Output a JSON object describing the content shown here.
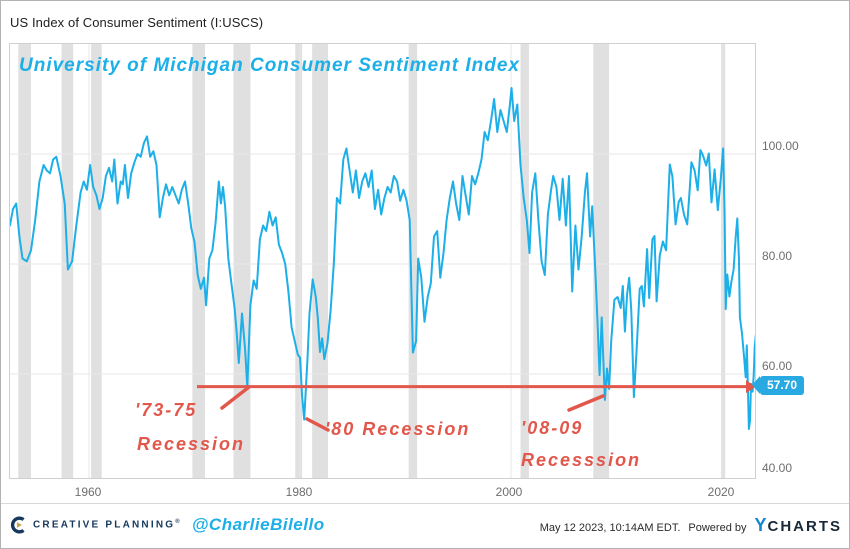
{
  "header": {
    "title": "US Index of Consumer Sentiment (I:USCS)"
  },
  "chart": {
    "title": "University of Michigan Consumer Sentiment Index",
    "line_color": "#1cafe8",
    "red_line_color": "#e2574c",
    "band_color": "#e0e0e0",
    "grid_color": "#e7e7e7",
    "last_value_label": "57.70"
  },
  "chart_data": {
    "type": "line",
    "title": "University of Michigan Consumer Sentiment Index",
    "series_name": "US Index of Consumer Sentiment (I:USCS)",
    "xlabel": "",
    "ylabel": "",
    "x_ticks": [
      "1960",
      "1980",
      "2000",
      "2020"
    ],
    "x_tick_values": [
      1960,
      1980,
      2000,
      2020
    ],
    "y_ticks": [
      "100.00",
      "80.00",
      "60.00",
      "40.00"
    ],
    "y_tick_values": [
      100,
      80,
      60,
      40
    ],
    "xlim": [
      1951.9,
      2023.9
    ],
    "ylim": [
      40,
      120
    ],
    "grid": true,
    "legend": "none",
    "latest_value": 57.7,
    "reference_line_value": 57.7,
    "recession_bands": [
      [
        1953.3,
        1954.5
      ],
      [
        1957.4,
        1958.5
      ],
      [
        1960.2,
        1961.2
      ],
      [
        1969.8,
        1971.0
      ],
      [
        1973.7,
        1975.3
      ],
      [
        1979.55,
        1980.2
      ],
      [
        1981.15,
        1982.65
      ],
      [
        1990.3,
        1991.1
      ],
      [
        2000.9,
        2001.7
      ],
      [
        2007.8,
        2009.3
      ],
      [
        2019.9,
        2020.3
      ]
    ],
    "points": [
      [
        1952.5,
        87
      ],
      [
        1952.8,
        90
      ],
      [
        1953.1,
        91
      ],
      [
        1953.4,
        85
      ],
      [
        1953.7,
        81
      ],
      [
        1954.1,
        80.5
      ],
      [
        1954.5,
        82.5
      ],
      [
        1954.9,
        88
      ],
      [
        1955.3,
        95
      ],
      [
        1955.7,
        98
      ],
      [
        1956.0,
        97
      ],
      [
        1956.3,
        96.5
      ],
      [
        1956.6,
        99
      ],
      [
        1956.9,
        99.5
      ],
      [
        1957.3,
        96
      ],
      [
        1957.7,
        91
      ],
      [
        1958.0,
        79
      ],
      [
        1958.4,
        80.5
      ],
      [
        1958.8,
        87
      ],
      [
        1959.2,
        93
      ],
      [
        1959.5,
        95
      ],
      [
        1959.8,
        93.5
      ],
      [
        1960.1,
        98
      ],
      [
        1960.4,
        94
      ],
      [
        1960.7,
        92.5
      ],
      [
        1961.0,
        90
      ],
      [
        1961.3,
        92
      ],
      [
        1961.6,
        96
      ],
      [
        1961.9,
        97.5
      ],
      [
        1962.2,
        95
      ],
      [
        1962.4,
        99
      ],
      [
        1962.7,
        91
      ],
      [
        1963.0,
        95
      ],
      [
        1963.2,
        94.5
      ],
      [
        1963.4,
        98
      ],
      [
        1963.7,
        92
      ],
      [
        1964.0,
        96.5
      ],
      [
        1964.3,
        98.5
      ],
      [
        1964.6,
        100
      ],
      [
        1964.9,
        99.5
      ],
      [
        1965.2,
        102
      ],
      [
        1965.5,
        103.2
      ],
      [
        1965.8,
        99.5
      ],
      [
        1966.1,
        100.5
      ],
      [
        1966.4,
        98
      ],
      [
        1966.7,
        88.5
      ],
      [
        1967.0,
        92
      ],
      [
        1967.3,
        94.5
      ],
      [
        1967.6,
        92.5
      ],
      [
        1967.9,
        94
      ],
      [
        1968.2,
        92.5
      ],
      [
        1968.5,
        91
      ],
      [
        1968.8,
        93.5
      ],
      [
        1969.1,
        95
      ],
      [
        1969.4,
        91
      ],
      [
        1969.7,
        86.5
      ],
      [
        1970.0,
        84
      ],
      [
        1970.3,
        78
      ],
      [
        1970.6,
        75.5
      ],
      [
        1970.9,
        77.5
      ],
      [
        1971.1,
        72.5
      ],
      [
        1971.4,
        81
      ],
      [
        1971.7,
        82.5
      ],
      [
        1972.0,
        87.5
      ],
      [
        1972.3,
        95
      ],
      [
        1972.5,
        91
      ],
      [
        1972.7,
        94
      ],
      [
        1972.9,
        90.5
      ],
      [
        1973.2,
        81
      ],
      [
        1973.5,
        76.5
      ],
      [
        1973.8,
        72
      ],
      [
        1974.0,
        67.5
      ],
      [
        1974.2,
        62
      ],
      [
        1974.5,
        71
      ],
      [
        1974.8,
        64.5
      ],
      [
        1975.0,
        57.6
      ],
      [
        1975.3,
        72.5
      ],
      [
        1975.6,
        77
      ],
      [
        1975.9,
        75.5
      ],
      [
        1976.2,
        84.5
      ],
      [
        1976.5,
        87
      ],
      [
        1976.8,
        86
      ],
      [
        1977.1,
        89.5
      ],
      [
        1977.4,
        87
      ],
      [
        1977.7,
        88.5
      ],
      [
        1978.0,
        83.5
      ],
      [
        1978.3,
        82
      ],
      [
        1978.6,
        80
      ],
      [
        1978.9,
        75
      ],
      [
        1979.2,
        68.5
      ],
      [
        1979.5,
        66
      ],
      [
        1979.8,
        63.5
      ],
      [
        1980.0,
        63
      ],
      [
        1980.2,
        56
      ],
      [
        1980.4,
        51.7
      ],
      [
        1980.7,
        62.5
      ],
      [
        1980.9,
        71
      ],
      [
        1981.2,
        77.2
      ],
      [
        1981.5,
        74
      ],
      [
        1981.7,
        70
      ],
      [
        1981.9,
        64
      ],
      [
        1982.1,
        66.5
      ],
      [
        1982.3,
        62.7
      ],
      [
        1982.6,
        65.5
      ],
      [
        1982.9,
        71.5
      ],
      [
        1983.2,
        80
      ],
      [
        1983.5,
        92
      ],
      [
        1983.8,
        91
      ],
      [
        1984.1,
        99
      ],
      [
        1984.4,
        101
      ],
      [
        1984.7,
        97
      ],
      [
        1985.0,
        93
      ],
      [
        1985.3,
        97
      ],
      [
        1985.6,
        92
      ],
      [
        1985.9,
        95
      ],
      [
        1986.2,
        96.5
      ],
      [
        1986.5,
        94
      ],
      [
        1986.8,
        97
      ],
      [
        1987.1,
        90
      ],
      [
        1987.4,
        93.5
      ],
      [
        1987.7,
        89
      ],
      [
        1988.0,
        92
      ],
      [
        1988.3,
        94
      ],
      [
        1988.6,
        93
      ],
      [
        1988.9,
        96
      ],
      [
        1989.2,
        95
      ],
      [
        1989.5,
        91.5
      ],
      [
        1989.8,
        93.5
      ],
      [
        1990.1,
        91.5
      ],
      [
        1990.4,
        88
      ],
      [
        1990.7,
        63.9
      ],
      [
        1991.0,
        66
      ],
      [
        1991.2,
        81
      ],
      [
        1991.5,
        77.5
      ],
      [
        1991.8,
        69.5
      ],
      [
        1992.1,
        74
      ],
      [
        1992.4,
        76.5
      ],
      [
        1992.7,
        85
      ],
      [
        1993.0,
        86
      ],
      [
        1993.3,
        77.5
      ],
      [
        1993.6,
        82
      ],
      [
        1993.9,
        88
      ],
      [
        1994.2,
        92
      ],
      [
        1994.5,
        95
      ],
      [
        1994.8,
        91
      ],
      [
        1995.1,
        88
      ],
      [
        1995.4,
        96
      ],
      [
        1995.7,
        92.5
      ],
      [
        1996.0,
        89
      ],
      [
        1996.3,
        96
      ],
      [
        1996.6,
        94.5
      ],
      [
        1996.9,
        96.5
      ],
      [
        1997.2,
        99
      ],
      [
        1997.5,
        104
      ],
      [
        1997.8,
        102.5
      ],
      [
        1998.1,
        106
      ],
      [
        1998.4,
        110
      ],
      [
        1998.7,
        104
      ],
      [
        1999.0,
        108
      ],
      [
        1999.3,
        106
      ],
      [
        1999.6,
        104
      ],
      [
        1999.9,
        109
      ],
      [
        2000.05,
        112
      ],
      [
        2000.3,
        106
      ],
      [
        2000.6,
        109
      ],
      [
        2000.9,
        98
      ],
      [
        2001.2,
        92
      ],
      [
        2001.5,
        88
      ],
      [
        2001.75,
        82
      ],
      [
        2002.0,
        93
      ],
      [
        2002.3,
        96.5
      ],
      [
        2002.6,
        88
      ],
      [
        2002.9,
        80.5
      ],
      [
        2003.2,
        78
      ],
      [
        2003.5,
        89
      ],
      [
        2003.8,
        93.5
      ],
      [
        2004.0,
        96
      ],
      [
        2004.3,
        94
      ],
      [
        2004.6,
        88
      ],
      [
        2004.9,
        95.5
      ],
      [
        2005.2,
        87
      ],
      [
        2005.5,
        96
      ],
      [
        2005.8,
        75
      ],
      [
        2006.1,
        87
      ],
      [
        2006.4,
        79
      ],
      [
        2006.7,
        85
      ],
      [
        2007.0,
        93
      ],
      [
        2007.2,
        96.5
      ],
      [
        2007.5,
        85
      ],
      [
        2007.7,
        90.5
      ],
      [
        2008.0,
        78.5
      ],
      [
        2008.2,
        69.5
      ],
      [
        2008.4,
        59.8
      ],
      [
        2008.6,
        70.3
      ],
      [
        2008.9,
        55.3
      ],
      [
        2009.1,
        61
      ],
      [
        2009.3,
        57.3
      ],
      [
        2009.5,
        66
      ],
      [
        2009.8,
        73.5
      ],
      [
        2010.1,
        74
      ],
      [
        2010.4,
        72
      ],
      [
        2010.6,
        76
      ],
      [
        2010.8,
        67.7
      ],
      [
        2011.0,
        74.5
      ],
      [
        2011.2,
        77.5
      ],
      [
        2011.4,
        71.5
      ],
      [
        2011.65,
        55.8
      ],
      [
        2011.9,
        64
      ],
      [
        2012.2,
        75.5
      ],
      [
        2012.4,
        76
      ],
      [
        2012.6,
        72.3
      ],
      [
        2012.9,
        82.7
      ],
      [
        2013.1,
        73.8
      ],
      [
        2013.4,
        84.5
      ],
      [
        2013.6,
        85.1
      ],
      [
        2013.8,
        73.2
      ],
      [
        2014.1,
        81.6
      ],
      [
        2014.4,
        84.1
      ],
      [
        2014.7,
        82.5
      ],
      [
        2014.95,
        93.6
      ],
      [
        2015.05,
        98.1
      ],
      [
        2015.3,
        95.9
      ],
      [
        2015.6,
        87.2
      ],
      [
        2015.9,
        91.3
      ],
      [
        2016.1,
        92
      ],
      [
        2016.4,
        89
      ],
      [
        2016.7,
        87.2
      ],
      [
        2016.95,
        93.8
      ],
      [
        2017.1,
        98.5
      ],
      [
        2017.4,
        97
      ],
      [
        2017.7,
        93.4
      ],
      [
        2017.95,
        100.7
      ],
      [
        2018.2,
        99.7
      ],
      [
        2018.5,
        97.9
      ],
      [
        2018.75,
        100.1
      ],
      [
        2019.0,
        91.2
      ],
      [
        2019.3,
        97.2
      ],
      [
        2019.6,
        89.8
      ],
      [
        2019.9,
        95.7
      ],
      [
        2020.1,
        101
      ],
      [
        2020.25,
        89.1
      ],
      [
        2020.35,
        71.8
      ],
      [
        2020.5,
        78.1
      ],
      [
        2020.7,
        74.1
      ],
      [
        2020.9,
        76.9
      ],
      [
        2021.1,
        79
      ],
      [
        2021.3,
        84.9
      ],
      [
        2021.45,
        88.3
      ],
      [
        2021.6,
        81.2
      ],
      [
        2021.7,
        70.3
      ],
      [
        2021.9,
        67.4
      ],
      [
        2022.1,
        62.8
      ],
      [
        2022.25,
        59.4
      ],
      [
        2022.35,
        65.2
      ],
      [
        2022.45,
        58.4
      ],
      [
        2022.55,
        50
      ],
      [
        2022.65,
        51.5
      ],
      [
        2022.75,
        58.2
      ],
      [
        2022.9,
        56.8
      ],
      [
        2023.0,
        59.7
      ],
      [
        2023.1,
        64.9
      ],
      [
        2023.2,
        67
      ],
      [
        2023.28,
        62
      ],
      [
        2023.32,
        63.5
      ],
      [
        2023.37,
        57.7
      ]
    ],
    "annotations": [
      {
        "text": "'73-75 Recession",
        "points_to_year": 1975.0
      },
      {
        "text": "'80 Recession",
        "points_to_year": 1980.4
      },
      {
        "text": "'08-09 Recesssion",
        "points_to_year": 2008.9
      }
    ]
  },
  "annotations": {
    "a1_line1": "'73-75",
    "a1_line2": "Recession",
    "a2": "'80 Recession",
    "a3_line1": "'08-09",
    "a3_line2": "Recesssion",
    "color": "#e2574c"
  },
  "badge": {
    "text": "57.70"
  },
  "footer": {
    "brand": "CREATIVE PLANNING",
    "reg": "®",
    "handle": "@CharlieBilello",
    "timestamp": "May 12 2023, 10:14AM EDT.",
    "powered_by": "Powered by",
    "logo_y": "Y",
    "logo_charts": "CHARTS"
  }
}
